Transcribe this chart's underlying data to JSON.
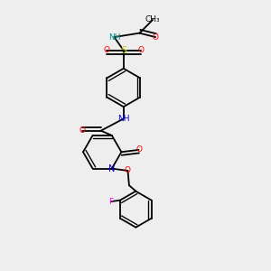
{
  "bg_color": "#eeeeee",
  "line_color": "#000000",
  "atom_colors": {
    "N": "#0000cc",
    "O": "#ff0000",
    "S": "#cccc00",
    "F": "#ff00ff",
    "NH": "#008888",
    "C": "#000000"
  },
  "lw": 1.3
}
